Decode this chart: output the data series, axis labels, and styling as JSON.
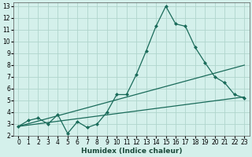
{
  "xlabel": "Humidex (Indice chaleur)",
  "x_ticks": [
    0,
    1,
    2,
    3,
    4,
    5,
    6,
    7,
    8,
    9,
    10,
    11,
    12,
    13,
    14,
    15,
    16,
    17,
    18,
    19,
    20,
    21,
    22,
    23
  ],
  "y_ticks": [
    2,
    3,
    4,
    5,
    6,
    7,
    8,
    9,
    10,
    11,
    12,
    13
  ],
  "xlim": [
    -0.5,
    23.5
  ],
  "ylim": [
    2,
    13.3
  ],
  "bg_color": "#d4f0eb",
  "grid_color": "#b0d5cc",
  "line_color": "#1a6b5a",
  "series1_x": [
    0,
    1,
    2,
    3,
    4,
    5,
    6,
    7,
    8,
    9,
    10,
    11,
    12,
    13,
    14,
    15,
    16,
    17,
    18,
    19,
    20,
    21,
    22,
    23
  ],
  "series1_y": [
    2.8,
    3.3,
    3.5,
    3.0,
    3.8,
    2.2,
    3.2,
    2.7,
    3.0,
    4.0,
    5.5,
    5.5,
    7.2,
    9.2,
    11.3,
    13.0,
    11.5,
    11.3,
    9.5,
    8.2,
    7.0,
    6.5,
    5.5,
    5.2
  ],
  "series2_x": [
    0,
    23
  ],
  "series2_y": [
    2.8,
    8.0
  ],
  "series3_x": [
    0,
    23
  ],
  "series3_y": [
    2.8,
    5.3
  ],
  "tick_fontsize": 5.5,
  "xlabel_fontsize": 6.5,
  "marker_size": 2.5,
  "line_width": 0.9
}
